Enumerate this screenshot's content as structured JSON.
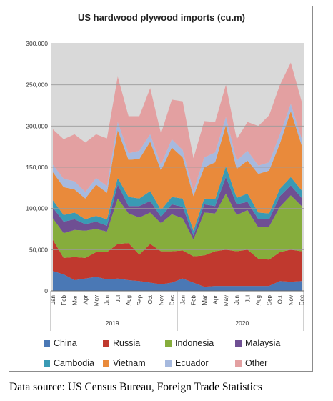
{
  "chart_data": {
    "type": "area",
    "stacked": true,
    "title": "US hardwood plywood imports (cu.m)",
    "xlabel": "",
    "ylabel": "",
    "ylim": [
      0,
      300000
    ],
    "yticks": [
      0,
      50000,
      100000,
      150000,
      200000,
      250000,
      300000
    ],
    "ytick_labels": [
      "0",
      "50,000",
      "100,000",
      "150,000",
      "200,000",
      "250,000",
      "300,000"
    ],
    "grid": true,
    "legend_position": "bottom",
    "x": [
      "Jan",
      "Feb",
      "Mar",
      "Apr",
      "May",
      "Jun",
      "Jul",
      "Aug",
      "Sep",
      "Oct",
      "Nov",
      "Dec",
      "Jan",
      "Feb",
      "Mar",
      "Apr",
      "May",
      "Jun",
      "Jul",
      "Aug",
      "Sep",
      "Oct",
      "Nov",
      "Dec"
    ],
    "x_groups": [
      {
        "label": "2019",
        "start": 0,
        "end": 11
      },
      {
        "label": "2020",
        "start": 12,
        "end": 23
      }
    ],
    "series": [
      {
        "name": "China",
        "color": "#4a78b5",
        "values": [
          24000,
          20000,
          13000,
          15000,
          17000,
          14000,
          15000,
          13000,
          12000,
          10000,
          8000,
          10000,
          15000,
          10000,
          5000,
          6000,
          6000,
          6000,
          6000,
          6000,
          6000,
          12000,
          11000,
          12000
        ]
      },
      {
        "name": "Russia",
        "color": "#c0392e",
        "values": [
          38000,
          20000,
          28000,
          25000,
          30000,
          33000,
          42000,
          45000,
          32000,
          47000,
          40000,
          38000,
          34000,
          32000,
          38000,
          42000,
          44000,
          42000,
          44000,
          33000,
          32000,
          35000,
          39000,
          36000
        ]
      },
      {
        "name": "Indonesia",
        "color": "#86ad3c",
        "values": [
          26000,
          30000,
          33000,
          33000,
          28000,
          25000,
          55000,
          36000,
          45000,
          38000,
          34000,
          45000,
          39000,
          20000,
          52000,
          46000,
          68000,
          44000,
          48000,
          38000,
          40000,
          55000,
          66000,
          55000
        ]
      },
      {
        "name": "Malaysia",
        "color": "#6f4f93",
        "values": [
          13000,
          14000,
          13000,
          8000,
          9000,
          7000,
          17000,
          9000,
          14000,
          14000,
          8000,
          12000,
          14000,
          5000,
          10000,
          9000,
          20000,
          13000,
          10000,
          10000,
          9000,
          13000,
          12000,
          10000
        ]
      },
      {
        "name": "Cambodia",
        "color": "#3a9ab4",
        "values": [
          9000,
          8000,
          8000,
          6000,
          7000,
          8000,
          8000,
          11000,
          9000,
          12000,
          8000,
          9000,
          10000,
          6000,
          7000,
          8000,
          13000,
          8000,
          10000,
          8000,
          7000,
          9000,
          10000,
          9000
        ]
      },
      {
        "name": "Vietnam",
        "color": "#e98a3b",
        "values": [
          34000,
          34000,
          28000,
          25000,
          38000,
          32000,
          58000,
          45000,
          48000,
          60000,
          48000,
          60000,
          50000,
          42000,
          38000,
          45000,
          50000,
          35000,
          40000,
          47000,
          52000,
          55000,
          80000,
          55000
        ]
      },
      {
        "name": "Ecuador",
        "color": "#a6b9de",
        "values": [
          9000,
          10000,
          10000,
          8000,
          8000,
          8000,
          10000,
          8000,
          10000,
          9000,
          7000,
          10000,
          9000,
          6000,
          12000,
          12000,
          10000,
          10000,
          12000,
          10000,
          10000,
          11000,
          9000,
          8000
        ]
      },
      {
        "name": "Other",
        "color": "#e3a0a1",
        "values": [
          43000,
          48000,
          57000,
          60000,
          53000,
          58000,
          55000,
          45000,
          42000,
          56000,
          38000,
          48000,
          59000,
          40000,
          44000,
          37000,
          39000,
          26000,
          35000,
          48000,
          57000,
          60000,
          50000,
          45000
        ]
      }
    ]
  },
  "source_note": "Data source: US Census Bureau, Foreign Trade Statistics"
}
